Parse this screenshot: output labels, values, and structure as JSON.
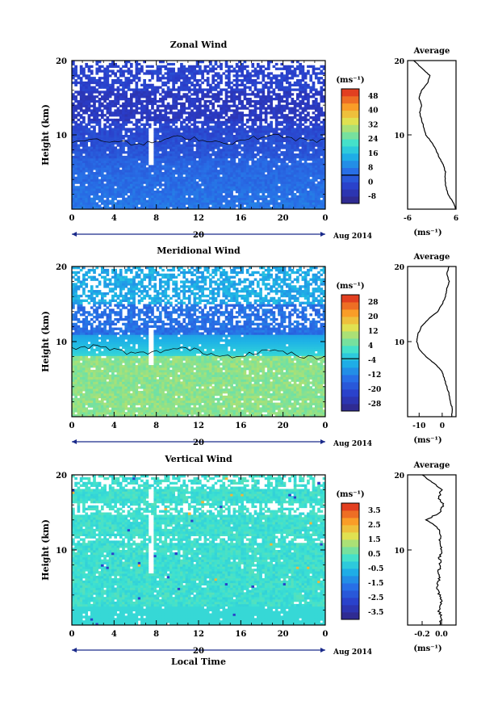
{
  "figure": {
    "x_axis_label": "Local Time",
    "date_label": "Aug 2014",
    "day_label": "20"
  },
  "chart_data": [
    {
      "type": "heatmap",
      "title": "Zonal Wind",
      "ylabel": "Height (km)",
      "xlim": [
        0,
        24
      ],
      "ylim": [
        0,
        20
      ],
      "x_ticks": [
        "0",
        "4",
        "8",
        "12",
        "16",
        "20",
        "0"
      ],
      "y_ticks": [
        "10",
        "20"
      ],
      "colorbar": {
        "unit": "(ms⁻¹)",
        "ticks": [
          "48",
          "40",
          "32",
          "24",
          "16",
          "8",
          "0",
          "-8"
        ],
        "range": [
          -12,
          52
        ]
      },
      "profile": {
        "title": "Average",
        "xlim": [
          -6,
          6
        ],
        "x_ticks": [
          "-6",
          "6"
        ],
        "unit": "(ms⁻¹)",
        "points": [
          [
            6,
            0
          ],
          [
            5.2,
            1
          ],
          [
            4,
            2
          ],
          [
            3.5,
            3
          ],
          [
            3.3,
            4
          ],
          [
            3.4,
            5
          ],
          [
            2.8,
            6
          ],
          [
            1.8,
            7
          ],
          [
            1,
            8
          ],
          [
            0,
            9
          ],
          [
            -1.5,
            10
          ],
          [
            -2,
            11
          ],
          [
            -2.5,
            12
          ],
          [
            -3,
            13
          ],
          [
            -2.5,
            14
          ],
          [
            -3.2,
            15
          ],
          [
            -2.5,
            16
          ],
          [
            -1,
            17
          ],
          [
            -0.5,
            18
          ],
          [
            -2.5,
            19
          ],
          [
            -4.5,
            20
          ]
        ]
      }
    },
    {
      "type": "heatmap",
      "title": "Meridional Wind",
      "ylabel": "Height (km)",
      "xlim": [
        0,
        24
      ],
      "ylim": [
        0,
        20
      ],
      "x_ticks": [
        "0",
        "4",
        "8",
        "12",
        "16",
        "20",
        "0"
      ],
      "y_ticks": [
        "10",
        "20"
      ],
      "colorbar": {
        "unit": "(ms⁻¹)",
        "ticks": [
          "28",
          "20",
          "12",
          "4",
          "-4",
          "-12",
          "-20",
          "-28"
        ],
        "range": [
          -32,
          32
        ]
      },
      "profile": {
        "title": "Average",
        "xlim": [
          -15,
          6
        ],
        "x_ticks": [
          "-10",
          "0"
        ],
        "unit": "(ms⁻¹)",
        "points": [
          [
            4,
            0
          ],
          [
            4.5,
            1
          ],
          [
            3.5,
            2
          ],
          [
            3,
            3
          ],
          [
            2,
            4
          ],
          [
            1,
            5
          ],
          [
            0,
            6
          ],
          [
            -3,
            7
          ],
          [
            -7,
            8
          ],
          [
            -10,
            9
          ],
          [
            -11,
            10
          ],
          [
            -10.5,
            11
          ],
          [
            -9,
            12
          ],
          [
            -6,
            13
          ],
          [
            -2,
            14
          ],
          [
            0,
            15
          ],
          [
            1.5,
            16
          ],
          [
            2,
            17
          ],
          [
            3,
            18
          ],
          [
            2,
            19
          ],
          [
            3,
            20
          ]
        ]
      }
    },
    {
      "type": "heatmap",
      "title": "Vertical Wind",
      "ylabel": "Height (km)",
      "xlim": [
        0,
        24
      ],
      "ylim": [
        0,
        20
      ],
      "x_ticks": [
        "0",
        "4",
        "8",
        "12",
        "16",
        "20",
        "0"
      ],
      "y_ticks": [
        "10",
        "20"
      ],
      "colorbar": {
        "unit": "(ms⁻¹)",
        "ticks": [
          "3.5",
          "2.5",
          "1.5",
          "0.5",
          "-0.5",
          "-1.5",
          "-2.5",
          "-3.5"
        ],
        "range": [
          -4,
          4
        ]
      },
      "profile": {
        "title": "Average",
        "xlim": [
          -0.35,
          0.15
        ],
        "x_ticks": [
          "-0.2",
          "0.0"
        ],
        "unit": "(ms⁻¹)",
        "points": [
          [
            -0.02,
            0
          ],
          [
            0,
            1
          ],
          [
            -0.03,
            2
          ],
          [
            0,
            3
          ],
          [
            -0.02,
            4
          ],
          [
            -0.05,
            5
          ],
          [
            -0.02,
            6
          ],
          [
            -0.03,
            7
          ],
          [
            -0.01,
            8
          ],
          [
            -0.02,
            9
          ],
          [
            0,
            10
          ],
          [
            -0.02,
            11
          ],
          [
            -0.01,
            12
          ],
          [
            -0.04,
            13
          ],
          [
            -0.15,
            14
          ],
          [
            -0.02,
            15
          ],
          [
            0.02,
            16
          ],
          [
            -0.03,
            17
          ],
          [
            0,
            18
          ],
          [
            -0.1,
            19
          ],
          [
            -0.2,
            20
          ]
        ]
      }
    }
  ]
}
